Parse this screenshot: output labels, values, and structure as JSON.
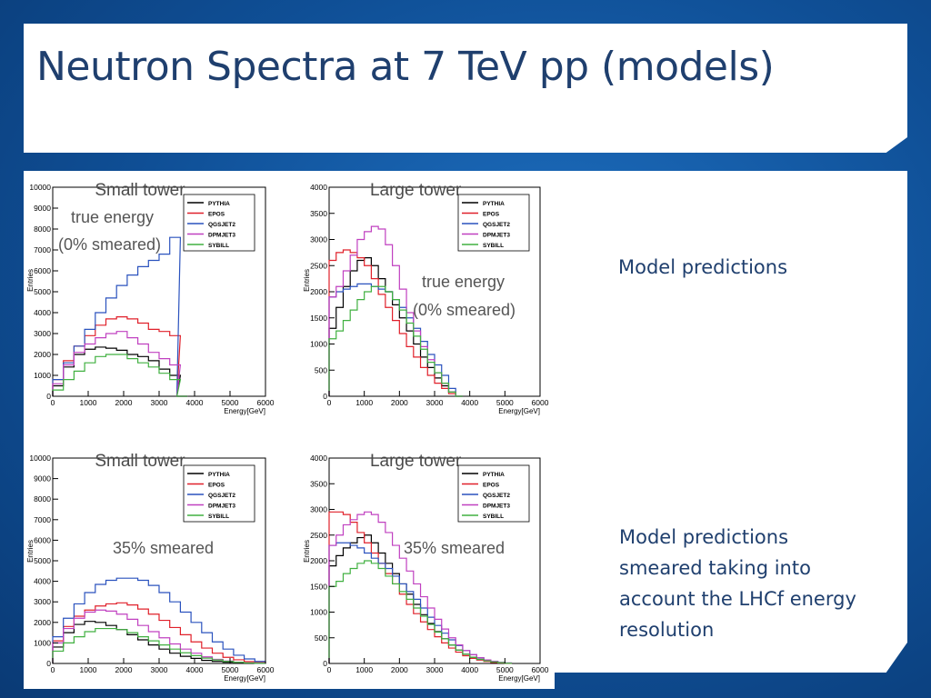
{
  "slide": {
    "title": "Neutron Spectra at 7 TeV pp (models)",
    "desc1": "Model predictions",
    "desc2_lines": [
      "Model predictions",
      "smeared taking into",
      "account  the LHCf energy",
      "resolution"
    ]
  },
  "colors": {
    "PYTHIA": "#000000",
    "EPOS": "#e0202a",
    "QGSJET2": "#2a52be",
    "DPMJET3": "#c040c0",
    "SYBILL": "#40b040"
  },
  "chart_data": [
    {
      "id": "small-true",
      "type": "line",
      "title": "Small tower",
      "annotation": [
        "true energy",
        "(0% smeared)"
      ],
      "xlabel": "Energy[GeV]",
      "ylabel": "Entries",
      "xlim": [
        0,
        6000
      ],
      "ylim": [
        0,
        10000
      ],
      "xticks": [
        0,
        1000,
        2000,
        3000,
        4000,
        5000,
        6000
      ],
      "yticks": [
        0,
        1000,
        2000,
        3000,
        4000,
        5000,
        6000,
        7000,
        8000,
        9000,
        10000
      ],
      "legend": "top-right",
      "x": [
        0,
        300,
        600,
        900,
        1200,
        1500,
        1800,
        2100,
        2400,
        2700,
        3000,
        3300,
        3500
      ],
      "series": [
        {
          "name": "PYTHIA",
          "values": [
            500,
            1400,
            2000,
            2250,
            2350,
            2300,
            2200,
            2000,
            1900,
            1700,
            1300,
            1000,
            0
          ]
        },
        {
          "name": "EPOS",
          "values": [
            800,
            1700,
            2400,
            2900,
            3400,
            3700,
            3800,
            3700,
            3500,
            3200,
            3100,
            2900,
            0
          ]
        },
        {
          "name": "QGSJET2",
          "values": [
            800,
            1600,
            2400,
            3200,
            4000,
            4700,
            5300,
            5800,
            6200,
            6500,
            6800,
            7600,
            0
          ]
        },
        {
          "name": "DPMJET3",
          "values": [
            600,
            1500,
            2100,
            2500,
            2800,
            3000,
            3100,
            2800,
            2500,
            2100,
            1800,
            1500,
            0
          ]
        },
        {
          "name": "SYBILL",
          "values": [
            300,
            800,
            1200,
            1600,
            1900,
            2000,
            2000,
            1800,
            1600,
            1400,
            1100,
            800,
            0
          ]
        }
      ]
    },
    {
      "id": "large-true",
      "type": "line",
      "title": "Large tower",
      "annotation": [
        "true energy",
        "(0% smeared)"
      ],
      "xlabel": "Energy[GeV]",
      "ylabel": "Entries",
      "xlim": [
        0,
        6000
      ],
      "ylim": [
        0,
        4000
      ],
      "xticks": [
        0,
        1000,
        2000,
        3000,
        4000,
        5000,
        6000
      ],
      "yticks": [
        0,
        500,
        1000,
        1500,
        2000,
        2500,
        3000,
        3500,
        4000
      ],
      "legend": "top-right",
      "x": [
        0,
        200,
        400,
        600,
        800,
        1000,
        1200,
        1400,
        1600,
        1800,
        2000,
        2200,
        2400,
        2600,
        2800,
        3000,
        3200,
        3400,
        3600
      ],
      "series": [
        {
          "name": "PYTHIA",
          "values": [
            1300,
            1700,
            2100,
            2400,
            2600,
            2650,
            2500,
            2250,
            2000,
            1750,
            1500,
            1250,
            1000,
            750,
            550,
            350,
            200,
            80,
            0
          ]
        },
        {
          "name": "EPOS",
          "values": [
            2600,
            2750,
            2800,
            2750,
            2650,
            2500,
            2250,
            1950,
            1700,
            1450,
            1200,
            950,
            750,
            550,
            400,
            250,
            150,
            50,
            0
          ]
        },
        {
          "name": "QGSJET2",
          "values": [
            1900,
            2000,
            2050,
            2100,
            2150,
            2150,
            2100,
            2050,
            2000,
            1850,
            1700,
            1500,
            1300,
            1050,
            800,
            600,
            400,
            150,
            0
          ]
        },
        {
          "name": "DPMJET3",
          "values": [
            1900,
            2100,
            2400,
            2700,
            3000,
            3150,
            3250,
            3200,
            2900,
            2500,
            2050,
            1600,
            1250,
            950,
            700,
            450,
            250,
            80,
            0
          ]
        },
        {
          "name": "SYBILL",
          "values": [
            1100,
            1250,
            1450,
            1650,
            1850,
            2000,
            2100,
            2100,
            2000,
            1850,
            1650,
            1400,
            1150,
            900,
            650,
            450,
            250,
            80,
            0
          ]
        }
      ]
    },
    {
      "id": "small-smeared",
      "type": "line",
      "title": "Small tower",
      "annotation": [
        "35% smeared"
      ],
      "xlabel": "Energy[GeV]",
      "ylabel": "Entries",
      "xlim": [
        0,
        6000
      ],
      "ylim": [
        0,
        10000
      ],
      "xticks": [
        0,
        1000,
        2000,
        3000,
        4000,
        5000,
        6000
      ],
      "yticks": [
        0,
        1000,
        2000,
        3000,
        4000,
        5000,
        6000,
        7000,
        8000,
        9000,
        10000
      ],
      "legend": "top-right",
      "x": [
        0,
        300,
        600,
        900,
        1200,
        1500,
        1800,
        2100,
        2400,
        2700,
        3000,
        3300,
        3600,
        3900,
        4200,
        4500,
        4800,
        5100,
        5400,
        5700,
        6000
      ],
      "series": [
        {
          "name": "PYTHIA",
          "values": [
            800,
            1500,
            1900,
            2050,
            2000,
            1850,
            1650,
            1400,
            1150,
            900,
            700,
            500,
            350,
            250,
            150,
            100,
            60,
            30,
            15,
            5,
            0
          ]
        },
        {
          "name": "EPOS",
          "values": [
            1100,
            1800,
            2300,
            2600,
            2800,
            2900,
            2950,
            2850,
            2650,
            2400,
            2100,
            1750,
            1400,
            1050,
            750,
            500,
            300,
            180,
            90,
            40,
            10
          ]
        },
        {
          "name": "QGSJET2",
          "values": [
            1300,
            2200,
            2900,
            3450,
            3850,
            4050,
            4150,
            4150,
            4050,
            3800,
            3450,
            3000,
            2500,
            2000,
            1500,
            1050,
            700,
            400,
            220,
            100,
            30
          ]
        },
        {
          "name": "DPMJET3",
          "values": [
            1000,
            1700,
            2200,
            2500,
            2600,
            2550,
            2400,
            2150,
            1850,
            1550,
            1250,
            950,
            700,
            500,
            320,
            200,
            120,
            60,
            30,
            10,
            0
          ]
        },
        {
          "name": "SYBILL",
          "values": [
            600,
            1000,
            1300,
            1550,
            1700,
            1700,
            1650,
            1500,
            1300,
            1100,
            900,
            700,
            520,
            380,
            260,
            170,
            100,
            55,
            25,
            10,
            0
          ]
        }
      ]
    },
    {
      "id": "large-smeared",
      "type": "line",
      "title": "Large tower",
      "annotation": [
        "35% smeared"
      ],
      "xlabel": "Energy[GeV]",
      "ylabel": "Entries",
      "xlim": [
        0,
        6000
      ],
      "ylim": [
        0,
        4000
      ],
      "xticks": [
        0,
        1000,
        2000,
        3000,
        4000,
        5000,
        6000
      ],
      "yticks": [
        0,
        500,
        1000,
        1500,
        2000,
        2500,
        3000,
        3500,
        4000
      ],
      "legend": "top-right",
      "x": [
        0,
        200,
        400,
        600,
        800,
        1000,
        1200,
        1400,
        1600,
        1800,
        2000,
        2200,
        2400,
        2600,
        2800,
        3000,
        3200,
        3400,
        3600,
        3800,
        4000,
        4200,
        4400,
        4600,
        4800,
        5000
      ],
      "series": [
        {
          "name": "PYTHIA",
          "values": [
            1900,
            2100,
            2250,
            2350,
            2450,
            2500,
            2350,
            2150,
            1950,
            1750,
            1550,
            1350,
            1150,
            950,
            780,
            620,
            480,
            360,
            260,
            180,
            120,
            80,
            50,
            30,
            15,
            5
          ]
        },
        {
          "name": "EPOS",
          "values": [
            2950,
            2950,
            2900,
            2750,
            2550,
            2350,
            2150,
            1950,
            1750,
            1550,
            1350,
            1150,
            970,
            810,
            660,
            520,
            400,
            300,
            220,
            150,
            100,
            65,
            40,
            20,
            10,
            5
          ]
        },
        {
          "name": "QGSJET2",
          "values": [
            2300,
            2350,
            2350,
            2300,
            2250,
            2150,
            2050,
            1950,
            1850,
            1700,
            1550,
            1400,
            1250,
            1080,
            900,
            740,
            590,
            460,
            350,
            250,
            170,
            110,
            70,
            40,
            20,
            10
          ]
        },
        {
          "name": "DPMJET3",
          "values": [
            2300,
            2500,
            2700,
            2800,
            2900,
            2950,
            2900,
            2750,
            2550,
            2300,
            2050,
            1800,
            1550,
            1300,
            1080,
            860,
            670,
            500,
            360,
            250,
            170,
            110,
            70,
            40,
            20,
            10
          ]
        },
        {
          "name": "SYBILL",
          "values": [
            1500,
            1600,
            1750,
            1850,
            1950,
            2000,
            1950,
            1850,
            1700,
            1550,
            1400,
            1250,
            1080,
            920,
            760,
            610,
            480,
            360,
            260,
            180,
            120,
            80,
            50,
            30,
            15,
            5
          ]
        }
      ]
    }
  ]
}
